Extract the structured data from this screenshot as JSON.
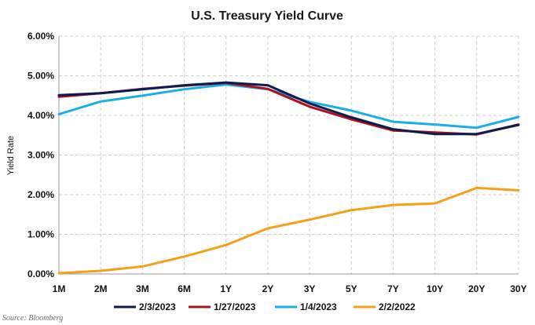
{
  "chart_data": {
    "type": "line",
    "title": "U.S. Treasury Yield Curve",
    "xlabel": "",
    "ylabel": "Yield Rate",
    "categories": [
      "1M",
      "2M",
      "3M",
      "6M",
      "1Y",
      "2Y",
      "3Y",
      "5Y",
      "7Y",
      "10Y",
      "20Y",
      "30Y"
    ],
    "ylim": [
      0,
      6
    ],
    "yticks": [
      "0.00%",
      "1.00%",
      "2.00%",
      "3.00%",
      "4.00%",
      "5.00%",
      "6.00%"
    ],
    "ytick_values": [
      0,
      1,
      2,
      3,
      4,
      5,
      6
    ],
    "grid": true,
    "legend_position": "bottom",
    "series": [
      {
        "name": "2/3/2023",
        "color": "#0d1c4f",
        "values": [
          4.51,
          4.56,
          4.66,
          4.76,
          4.83,
          4.76,
          4.3,
          3.95,
          3.65,
          3.53,
          3.53,
          3.76
        ]
      },
      {
        "name": "1/27/2023",
        "color": "#b0101c",
        "values": [
          4.47,
          4.56,
          4.67,
          4.75,
          4.82,
          4.67,
          4.22,
          3.9,
          3.62,
          3.57,
          3.52,
          3.77
        ]
      },
      {
        "name": "1/4/2023",
        "color": "#1aaee8",
        "values": [
          4.03,
          4.35,
          4.5,
          4.66,
          4.78,
          4.66,
          4.34,
          4.12,
          3.84,
          3.77,
          3.69,
          3.96
        ]
      },
      {
        "name": "2/2/2022",
        "color": "#f4a118",
        "values": [
          0.02,
          0.08,
          0.19,
          0.44,
          0.73,
          1.15,
          1.37,
          1.61,
          1.74,
          1.78,
          2.17,
          2.11
        ]
      }
    ]
  },
  "source": "Source: Bloomberg"
}
